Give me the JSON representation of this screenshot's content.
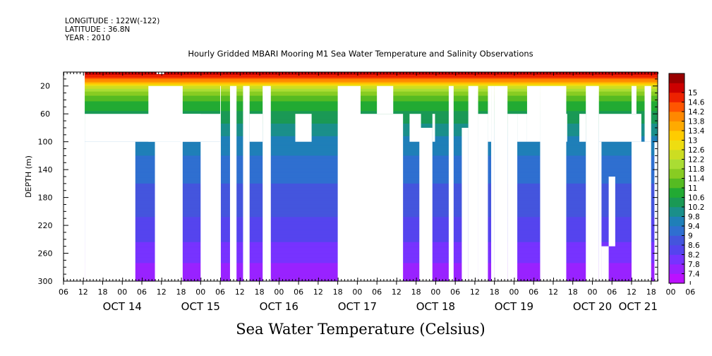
{
  "header": {
    "longitude": "LONGITUDE : 122W(-122)",
    "latitude": "LATITUDE : 36.8N",
    "year": "YEAR : 2010"
  },
  "bottom_label": "Sea Water Temperature (Celsius)",
  "chart_data": {
    "type": "heatmap",
    "title": "Hourly Gridded MBARI Mooring M1 Sea Water Temperature and Salinity Observations",
    "ylabel": "DEPTH (m)",
    "xlabel": "",
    "xlim": [
      0,
      182
    ],
    "ylim": [
      300,
      0
    ],
    "yticks": [
      20,
      60,
      100,
      140,
      180,
      220,
      260,
      300
    ],
    "xtick_hours": [
      "06",
      "12",
      "18",
      "00",
      "06",
      "12",
      "18",
      "00",
      "06",
      "12",
      "18",
      "00",
      "06",
      "12",
      "18",
      "00",
      "06",
      "12",
      "18",
      "00",
      "06",
      "12",
      "18",
      "00",
      "06",
      "12",
      "18",
      "00",
      "06",
      "12",
      "18",
      "00",
      "06"
    ],
    "date_labels": [
      {
        "label": "OCT 14",
        "hour": 18
      },
      {
        "label": "OCT 15",
        "hour": 42
      },
      {
        "label": "OCT 16",
        "hour": 66
      },
      {
        "label": "OCT 17",
        "hour": 90
      },
      {
        "label": "OCT 18",
        "hour": 114
      },
      {
        "label": "OCT 19",
        "hour": 138
      },
      {
        "label": "OCT 20",
        "hour": 162
      },
      {
        "label": "OCT 21",
        "hour": 176
      }
    ],
    "colorbar": {
      "levels": [
        7.4,
        7.8,
        8.2,
        8.6,
        9,
        9.4,
        9.8,
        10.2,
        10.6,
        11,
        11.4,
        11.8,
        12.2,
        12.6,
        13,
        13.4,
        13.8,
        14.2,
        14.6,
        15
      ],
      "colors": [
        "#bb11ff",
        "#9922ff",
        "#7733ff",
        "#5544ee",
        "#4455dd",
        "#2f6fd0",
        "#1f7fb8",
        "#1a8f8a",
        "#1a9955",
        "#22aa33",
        "#55bb22",
        "#88cc22",
        "#aadd33",
        "#ccdd22",
        "#eedd11",
        "#ffcc00",
        "#ffaa00",
        "#ff8800",
        "#ff5500",
        "#ee2200",
        "#cc0000",
        "#990000"
      ]
    },
    "profile": [
      {
        "depth": 2,
        "value": 15.2
      },
      {
        "depth": 12,
        "value": 14.0
      },
      {
        "depth": 18,
        "value": 12.8
      },
      {
        "depth": 26,
        "value": 11.9
      },
      {
        "depth": 36,
        "value": 11.2
      },
      {
        "depth": 60,
        "value": 10.5
      },
      {
        "depth": 100,
        "value": 9.6
      },
      {
        "depth": 160,
        "value": 9.0
      },
      {
        "depth": 220,
        "value": 8.5
      },
      {
        "depth": 260,
        "value": 8.0
      },
      {
        "depth": 300,
        "value": 7.4
      }
    ],
    "gaps": [
      {
        "t0": 0,
        "t1": 6.5,
        "d0": 0,
        "d1": 300
      },
      {
        "t0": 6.5,
        "t1": 42,
        "d0": 60,
        "d1": 100
      },
      {
        "t0": 6.5,
        "t1": 22,
        "d0": 100,
        "d1": 300
      },
      {
        "t0": 28,
        "t1": 36,
        "d0": 100,
        "d1": 300
      },
      {
        "t0": 28.5,
        "t1": 30.8,
        "d0": 0,
        "d1": 3
      },
      {
        "t0": 26,
        "t1": 36,
        "d0": 20,
        "d1": 100
      },
      {
        "t0": 36,
        "t1": 36.5,
        "d0": 20,
        "d1": 300
      },
      {
        "t0": 36,
        "t1": 48,
        "d0": 60,
        "d1": 100
      },
      {
        "t0": 42,
        "t1": 48,
        "d0": 100,
        "d1": 300
      },
      {
        "t0": 48,
        "t1": 48.2,
        "d0": 20,
        "d1": 300
      },
      {
        "t0": 51,
        "t1": 53,
        "d0": 20,
        "d1": 300
      },
      {
        "t0": 55,
        "t1": 57,
        "d0": 20,
        "d1": 300
      },
      {
        "t0": 57,
        "t1": 61,
        "d0": 60,
        "d1": 100
      },
      {
        "t0": 61,
        "t1": 63.5,
        "d0": 20,
        "d1": 300
      },
      {
        "t0": 71,
        "t1": 76,
        "d0": 60,
        "d1": 100
      },
      {
        "t0": 84,
        "t1": 91,
        "d0": 20,
        "d1": 300
      },
      {
        "t0": 91,
        "t1": 104,
        "d0": 60,
        "d1": 300
      },
      {
        "t0": 96,
        "t1": 101,
        "d0": 20,
        "d1": 60
      },
      {
        "t0": 106,
        "t1": 109.5,
        "d0": 60,
        "d1": 100
      },
      {
        "t0": 109,
        "t1": 113,
        "d0": 80,
        "d1": 300
      },
      {
        "t0": 113,
        "t1": 113.8,
        "d0": 60,
        "d1": 100
      },
      {
        "t0": 118,
        "t1": 119.5,
        "d0": 20,
        "d1": 300
      },
      {
        "t0": 122,
        "t1": 124,
        "d0": 80,
        "d1": 300
      },
      {
        "t0": 124,
        "t1": 127,
        "d0": 20,
        "d1": 300
      },
      {
        "t0": 127,
        "t1": 130,
        "d0": 60,
        "d1": 300
      },
      {
        "t0": 130,
        "t1": 131,
        "d0": 20,
        "d1": 100
      },
      {
        "t0": 131,
        "t1": 132,
        "d0": 20,
        "d1": 300
      },
      {
        "t0": 132,
        "t1": 136,
        "d0": 20,
        "d1": 300
      },
      {
        "t0": 136,
        "t1": 139,
        "d0": 60,
        "d1": 300
      },
      {
        "t0": 139,
        "t1": 142,
        "d0": 60,
        "d1": 100
      },
      {
        "t0": 142,
        "t1": 146,
        "d0": 20,
        "d1": 100
      },
      {
        "t0": 146,
        "t1": 154,
        "d0": 20,
        "d1": 300
      },
      {
        "t0": 154,
        "t1": 154.3,
        "d0": 60,
        "d1": 100
      },
      {
        "t0": 158,
        "t1": 160,
        "d0": 60,
        "d1": 100
      },
      {
        "t0": 160,
        "t1": 164,
        "d0": 20,
        "d1": 300
      },
      {
        "t0": 164,
        "t1": 177,
        "d0": 60,
        "d1": 100
      },
      {
        "t0": 164,
        "t1": 164.8,
        "d0": 100,
        "d1": 300
      },
      {
        "t0": 167,
        "t1": 169,
        "d0": 150,
        "d1": 250
      },
      {
        "t0": 164.8,
        "t1": 167,
        "d0": 250,
        "d1": 300
      },
      {
        "t0": 174,
        "t1": 180,
        "d0": 100,
        "d1": 300
      },
      {
        "t0": 174,
        "t1": 175.5,
        "d0": 20,
        "d1": 60
      },
      {
        "t0": 178,
        "t1": 180,
        "d0": 20,
        "d1": 100
      },
      {
        "t0": 181,
        "t1": 182,
        "d0": 100,
        "d1": 300
      }
    ]
  }
}
